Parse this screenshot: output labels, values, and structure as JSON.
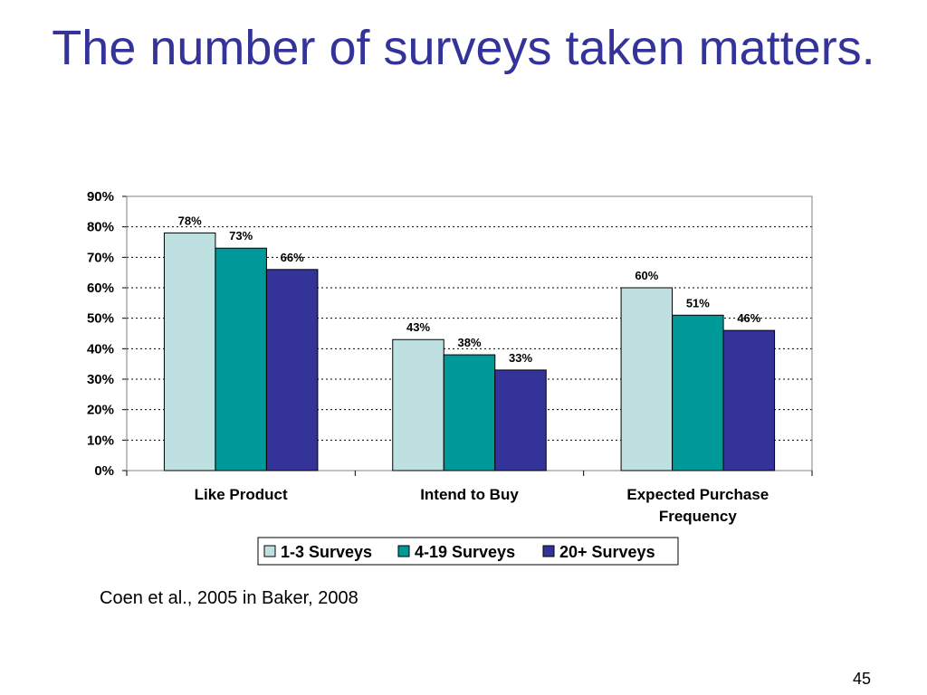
{
  "slide": {
    "title": "The number of surveys taken matters.",
    "source": "Coen et al., 2005 in Baker, 2008",
    "page_number": "45"
  },
  "chart_data": {
    "type": "bar",
    "categories": [
      "Like Product",
      "Intend to Buy",
      "Expected Purchase Frequency"
    ],
    "series": [
      {
        "name": "1-3 Surveys",
        "values": [
          78,
          43,
          60
        ],
        "color": "#BFE0E0"
      },
      {
        "name": "4-19 Surveys",
        "values": [
          73,
          38,
          51
        ],
        "color": "#009999"
      },
      {
        "name": "20+ Surveys",
        "values": [
          66,
          33,
          46
        ],
        "color": "#333399"
      }
    ],
    "data_labels": [
      [
        "78%",
        "43%",
        "60%"
      ],
      [
        "73%",
        "38%",
        "51%"
      ],
      [
        "66%",
        "33%",
        "46%"
      ]
    ],
    "y_ticks": [
      0,
      10,
      20,
      30,
      40,
      50,
      60,
      70,
      80,
      90
    ],
    "y_tick_labels": [
      "0%",
      "10%",
      "20%",
      "30%",
      "40%",
      "50%",
      "60%",
      "70%",
      "80%",
      "90%"
    ],
    "ylim": [
      0,
      90
    ],
    "grid": "dotted horizontal",
    "legend_position": "bottom",
    "title": "",
    "xlabel": "",
    "ylabel": ""
  }
}
